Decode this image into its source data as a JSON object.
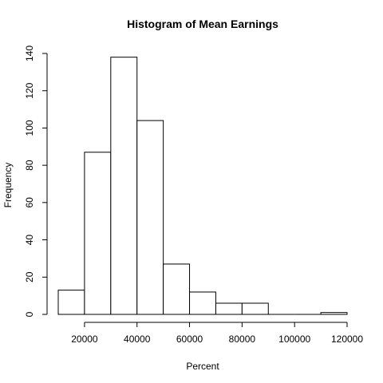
{
  "chart_data": {
    "type": "bar",
    "title": "Histogram of Mean Earnings",
    "xlabel": "Percent",
    "ylabel": "Frequency",
    "bins": [
      [
        10000,
        20000
      ],
      [
        20000,
        30000
      ],
      [
        30000,
        40000
      ],
      [
        40000,
        50000
      ],
      [
        50000,
        60000
      ],
      [
        60000,
        70000
      ],
      [
        70000,
        80000
      ],
      [
        80000,
        90000
      ],
      [
        90000,
        100000
      ],
      [
        100000,
        110000
      ],
      [
        110000,
        120000
      ]
    ],
    "values": [
      13,
      87,
      138,
      104,
      27,
      12,
      6,
      6,
      0,
      0,
      1
    ],
    "xlim": [
      10000,
      120000
    ],
    "ylim": [
      0,
      140
    ],
    "x_ticks": [
      20000,
      40000,
      60000,
      80000,
      100000,
      120000
    ],
    "x_tick_labels": [
      "20000",
      "40000",
      "60000",
      "80000",
      "100000",
      "120000"
    ],
    "y_ticks": [
      0,
      20,
      40,
      60,
      80,
      100,
      120,
      140
    ],
    "y_tick_labels": [
      "0",
      "20",
      "40",
      "60",
      "80",
      "100",
      "120",
      "140"
    ],
    "grid": false,
    "legend": "none"
  }
}
